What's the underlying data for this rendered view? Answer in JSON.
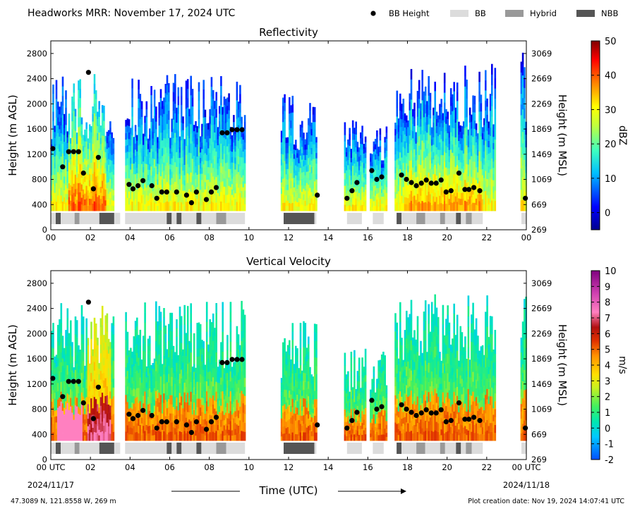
{
  "header": {
    "title": "Headworks MRR:  November 17, 2024 UTC",
    "legend": [
      {
        "label": "BB Height",
        "kind": "dot",
        "color": "#000000"
      },
      {
        "label": "BB",
        "kind": "box",
        "color": "#dcdcdc"
      },
      {
        "label": "Hybrid",
        "kind": "box",
        "color": "#999999"
      },
      {
        "label": "NBB",
        "kind": "box",
        "color": "#555555"
      }
    ]
  },
  "footer": {
    "location": "47.3089 N, 121.8558 W, 269 m",
    "creation": "Plot creation date: Nov 19, 2024 14:07:41 UTC",
    "xlabel": "Time (UTC)",
    "start_date": "2024/11/17",
    "end_date": "2024/11/18"
  },
  "chart_data": [
    {
      "type": "heatmap",
      "title": "Reflectivity",
      "xlabel": "",
      "ylabel": "Height (m AGL)",
      "ylabel_right": "Height (m MSL)",
      "xlim": [
        0,
        24
      ],
      "ylim": [
        0,
        3000
      ],
      "x_ticks": [
        "00",
        "02",
        "04",
        "06",
        "08",
        "10",
        "12",
        "14",
        "16",
        "18",
        "20",
        "22",
        "00"
      ],
      "y_ticks": [
        0,
        400,
        800,
        1200,
        1600,
        2000,
        2400,
        2800
      ],
      "y_ticks_right": [
        269,
        669,
        1069,
        1469,
        1869,
        2269,
        2669,
        3069
      ],
      "colorbar": {
        "label": "dBZ",
        "min": -5,
        "max": 50,
        "ticks": [
          0,
          10,
          20,
          30,
          40,
          50
        ]
      },
      "bb_height": [
        [
          0.1,
          1290
        ],
        [
          0.6,
          1000
        ],
        [
          0.9,
          1240
        ],
        [
          1.15,
          1240
        ],
        [
          1.4,
          1240
        ],
        [
          1.65,
          900
        ],
        [
          1.9,
          2500
        ],
        [
          2.15,
          650
        ],
        [
          2.4,
          1150
        ],
        [
          3.95,
          720
        ],
        [
          4.15,
          650
        ],
        [
          4.4,
          700
        ],
        [
          4.65,
          780
        ],
        [
          5.1,
          700
        ],
        [
          5.35,
          500
        ],
        [
          5.6,
          600
        ],
        [
          5.85,
          600
        ],
        [
          6.35,
          600
        ],
        [
          6.85,
          550
        ],
        [
          7.1,
          430
        ],
        [
          7.35,
          600
        ],
        [
          7.85,
          480
        ],
        [
          8.1,
          600
        ],
        [
          8.35,
          670
        ],
        [
          8.65,
          1540
        ],
        [
          8.9,
          1540
        ],
        [
          9.15,
          1590
        ],
        [
          9.4,
          1590
        ],
        [
          9.65,
          1590
        ],
        [
          13.45,
          550
        ],
        [
          14.95,
          500
        ],
        [
          15.2,
          620
        ],
        [
          15.45,
          750
        ],
        [
          16.2,
          940
        ],
        [
          16.45,
          800
        ],
        [
          16.7,
          840
        ],
        [
          17.7,
          870
        ],
        [
          17.95,
          800
        ],
        [
          18.2,
          750
        ],
        [
          18.45,
          700
        ],
        [
          18.7,
          740
        ],
        [
          18.95,
          790
        ],
        [
          19.2,
          740
        ],
        [
          19.45,
          740
        ],
        [
          19.7,
          790
        ],
        [
          19.95,
          600
        ],
        [
          20.2,
          620
        ],
        [
          20.6,
          900
        ],
        [
          20.9,
          640
        ],
        [
          21.1,
          640
        ],
        [
          21.35,
          670
        ],
        [
          21.65,
          620
        ],
        [
          23.95,
          500
        ]
      ],
      "band_type": [
        [
          "BB",
          0.0,
          0.25
        ],
        [
          "NBB",
          0.25,
          0.5
        ],
        [
          "BB",
          0.5,
          1.2
        ],
        [
          "Hybrid",
          1.2,
          1.45
        ],
        [
          "BB",
          1.45,
          2.45
        ],
        [
          "NBB",
          2.45,
          3.2
        ],
        [
          "BB",
          3.2,
          3.5
        ],
        [
          "BB",
          3.75,
          5.85
        ],
        [
          "NBB",
          5.85,
          6.1
        ],
        [
          "BB",
          6.1,
          6.35
        ],
        [
          "NBB",
          6.35,
          6.6
        ],
        [
          "BB",
          6.6,
          7.35
        ],
        [
          "NBB",
          7.35,
          7.6
        ],
        [
          "BB",
          7.6,
          8.35
        ],
        [
          "Hybrid",
          8.35,
          8.85
        ],
        [
          "BB",
          8.85,
          9.8
        ],
        [
          "NBB",
          11.75,
          13.3
        ],
        [
          "BB",
          13.3,
          13.4
        ],
        [
          "BB",
          14.95,
          15.7
        ],
        [
          "BB",
          16.25,
          16.8
        ],
        [
          "NBB",
          17.45,
          17.7
        ],
        [
          "BB",
          17.7,
          18.45
        ],
        [
          "Hybrid",
          18.45,
          18.9
        ],
        [
          "BB",
          18.9,
          19.65
        ],
        [
          "Hybrid",
          19.65,
          19.9
        ],
        [
          "BB",
          19.9,
          20.45
        ],
        [
          "NBB",
          20.45,
          20.7
        ],
        [
          "BB",
          20.7,
          20.95
        ],
        [
          "Hybrid",
          20.95,
          21.25
        ],
        [
          "BB",
          21.25,
          21.8
        ],
        [
          "BB",
          23.75,
          24.0
        ]
      ]
    },
    {
      "type": "heatmap",
      "title": "Vertical Velocity",
      "xlabel": "Time (UTC)",
      "ylabel": "Height (m AGL)",
      "ylabel_right": "Height (m MSL)",
      "xlim": [
        0,
        24
      ],
      "ylim": [
        0,
        3000
      ],
      "x_ticks": [
        "00 UTC",
        "02",
        "04",
        "06",
        "08",
        "10",
        "12",
        "14",
        "16",
        "18",
        "20",
        "22",
        "00 UTC"
      ],
      "y_ticks": [
        0,
        400,
        800,
        1200,
        1600,
        2000,
        2400,
        2800
      ],
      "y_ticks_right": [
        269,
        669,
        1069,
        1469,
        1869,
        2269,
        2669,
        3069
      ],
      "colorbar": {
        "label": "m/s",
        "min": -2,
        "max": 10,
        "ticks": [
          -2,
          -1,
          0,
          1,
          2,
          3,
          4,
          5,
          6,
          7,
          8,
          9,
          10
        ]
      },
      "bb_height": [
        [
          0.1,
          1290
        ],
        [
          0.6,
          1000
        ],
        [
          0.9,
          1240
        ],
        [
          1.15,
          1240
        ],
        [
          1.4,
          1240
        ],
        [
          1.65,
          900
        ],
        [
          1.9,
          2500
        ],
        [
          2.15,
          650
        ],
        [
          2.4,
          1150
        ],
        [
          3.95,
          720
        ],
        [
          4.15,
          650
        ],
        [
          4.4,
          700
        ],
        [
          4.65,
          780
        ],
        [
          5.1,
          700
        ],
        [
          5.35,
          500
        ],
        [
          5.6,
          600
        ],
        [
          5.85,
          600
        ],
        [
          6.35,
          600
        ],
        [
          6.85,
          550
        ],
        [
          7.1,
          430
        ],
        [
          7.35,
          600
        ],
        [
          7.85,
          480
        ],
        [
          8.1,
          600
        ],
        [
          8.35,
          670
        ],
        [
          8.65,
          1540
        ],
        [
          8.9,
          1540
        ],
        [
          9.15,
          1590
        ],
        [
          9.4,
          1590
        ],
        [
          9.65,
          1590
        ],
        [
          13.45,
          550
        ],
        [
          14.95,
          500
        ],
        [
          15.2,
          620
        ],
        [
          15.45,
          750
        ],
        [
          16.2,
          940
        ],
        [
          16.45,
          800
        ],
        [
          16.7,
          840
        ],
        [
          17.7,
          870
        ],
        [
          17.95,
          800
        ],
        [
          18.2,
          750
        ],
        [
          18.45,
          700
        ],
        [
          18.7,
          740
        ],
        [
          18.95,
          790
        ],
        [
          19.2,
          740
        ],
        [
          19.45,
          740
        ],
        [
          19.7,
          790
        ],
        [
          19.95,
          600
        ],
        [
          20.2,
          620
        ],
        [
          20.6,
          900
        ],
        [
          20.9,
          640
        ],
        [
          21.1,
          640
        ],
        [
          21.35,
          670
        ],
        [
          21.65,
          620
        ],
        [
          23.95,
          500
        ]
      ],
      "band_type": [
        [
          "BB",
          0.0,
          0.25
        ],
        [
          "NBB",
          0.25,
          0.5
        ],
        [
          "BB",
          0.5,
          1.2
        ],
        [
          "Hybrid",
          1.2,
          1.45
        ],
        [
          "BB",
          1.45,
          2.45
        ],
        [
          "NBB",
          2.45,
          3.2
        ],
        [
          "BB",
          3.2,
          3.5
        ],
        [
          "BB",
          3.75,
          5.85
        ],
        [
          "NBB",
          5.85,
          6.1
        ],
        [
          "BB",
          6.1,
          6.35
        ],
        [
          "NBB",
          6.35,
          6.6
        ],
        [
          "BB",
          6.6,
          7.35
        ],
        [
          "NBB",
          7.35,
          7.6
        ],
        [
          "BB",
          7.6,
          8.35
        ],
        [
          "Hybrid",
          8.35,
          8.85
        ],
        [
          "BB",
          8.85,
          9.8
        ],
        [
          "NBB",
          11.75,
          13.3
        ],
        [
          "BB",
          13.3,
          13.4
        ],
        [
          "BB",
          14.95,
          15.7
        ],
        [
          "BB",
          16.25,
          16.8
        ],
        [
          "NBB",
          17.45,
          17.7
        ],
        [
          "BB",
          17.7,
          18.45
        ],
        [
          "Hybrid",
          18.45,
          18.9
        ],
        [
          "BB",
          18.9,
          19.65
        ],
        [
          "Hybrid",
          19.65,
          19.9
        ],
        [
          "BB",
          19.9,
          20.45
        ],
        [
          "NBB",
          20.45,
          20.7
        ],
        [
          "BB",
          20.7,
          20.95
        ],
        [
          "Hybrid",
          20.95,
          21.25
        ],
        [
          "BB",
          21.25,
          21.8
        ],
        [
          "BB",
          23.75,
          24.0
        ]
      ]
    }
  ]
}
